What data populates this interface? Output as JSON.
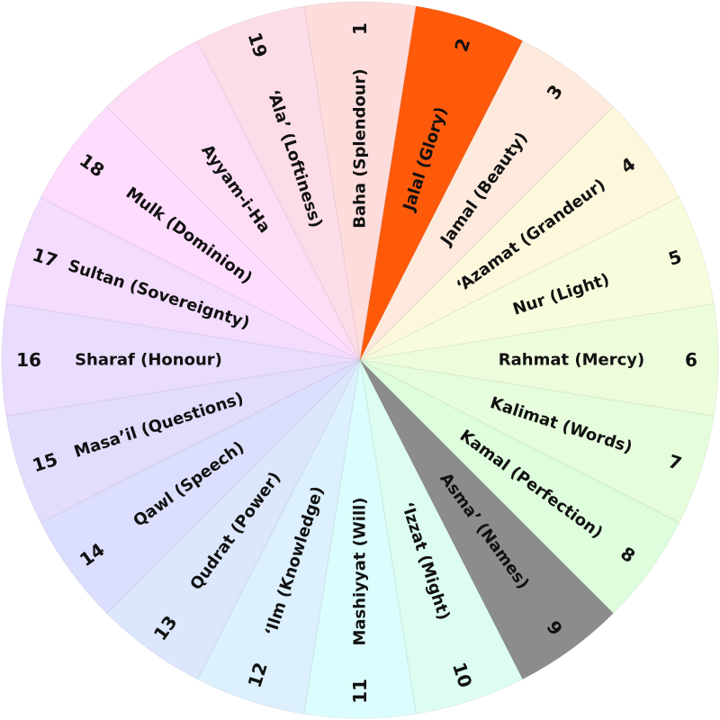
{
  "wheel": {
    "segments": [
      {
        "number": "1",
        "label": "Baha (Splendour)",
        "color": "#fddcdc"
      },
      {
        "number": "2",
        "label": "Jalal (Glory)",
        "color": "#ff5a0a"
      },
      {
        "number": "3",
        "label": "Jamal (Beauty)",
        "color": "#fdeadc"
      },
      {
        "number": "4",
        "label": "‘Azamat (Grandeur)",
        "color": "#fdf7dc"
      },
      {
        "number": "5",
        "label": "Nur (Light)",
        "color": "#f7fddc"
      },
      {
        "number": "6",
        "label": "Rahmat (Mercy)",
        "color": "#edfddc"
      },
      {
        "number": "7",
        "label": "Kalimat (Words)",
        "color": "#e5fddc"
      },
      {
        "number": "8",
        "label": "Kamal (Perfection)",
        "color": "#ddfddd"
      },
      {
        "number": "9",
        "label": "Asma’ (Names)",
        "color": "#8c8c8c"
      },
      {
        "number": "10",
        "label": "‘Izzat (Might)",
        "color": "#dcfdef"
      },
      {
        "number": "11",
        "label": "Mashiyyat (Will)",
        "color": "#dcfdfd"
      },
      {
        "number": "12",
        "label": "‘Ilm (Knowledge)",
        "color": "#dcf0fd"
      },
      {
        "number": "13",
        "label": "Qudrat (Power)",
        "color": "#dce7fd"
      },
      {
        "number": "14",
        "label": "Qawl (Speech)",
        "color": "#dcdefd"
      },
      {
        "number": "15",
        "label": "Masa’il (Questions)",
        "color": "#e3dcfd"
      },
      {
        "number": "16",
        "label": "Sharaf (Honour)",
        "color": "#eadcfd"
      },
      {
        "number": "17",
        "label": "Sultan (Sovereignty)",
        "color": "#f3dcfd"
      },
      {
        "number": "18",
        "label": "Mulk (Dominion)",
        "color": "#fddcfd"
      },
      {
        "number": "",
        "label": "Ayyam-i-Ha",
        "color": "#fddcf5"
      },
      {
        "number": "19",
        "label": "‘Ala’ (Loftiness)",
        "color": "#fddce9"
      }
    ]
  }
}
